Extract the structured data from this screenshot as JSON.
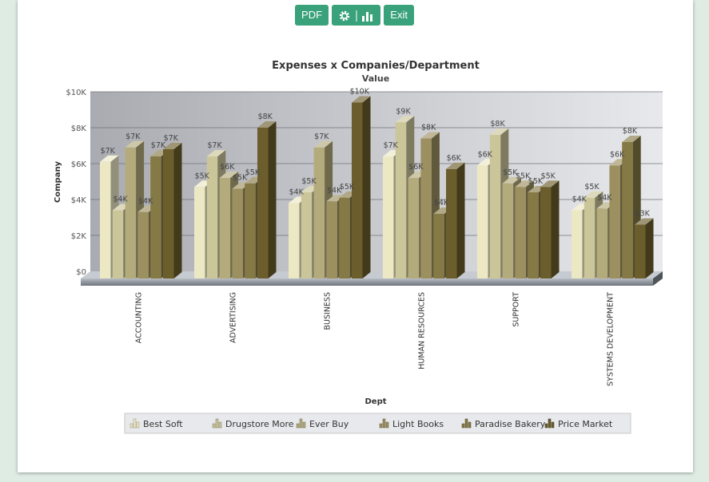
{
  "toolbar": {
    "pdf_label": "PDF",
    "settings_icon": "gear-icon",
    "chart_icon": "bar-chart-icon",
    "exit_label": "Exit",
    "accent": "#3aa27a"
  },
  "chart_data": {
    "type": "bar",
    "title": "Expenses x Companies/Department",
    "subtitle": "Value",
    "xlabel": "Dept",
    "ylabel": "Company",
    "ylim": [
      0,
      10000
    ],
    "yticks": [
      "$0",
      "$2K",
      "$4K",
      "$6K",
      "$8K",
      "$10K"
    ],
    "grid": true,
    "legend_position": "bottom",
    "categories": [
      "ACCOUNTING",
      "ADVERTISING",
      "BUSINESS",
      "HUMAN RESOURCES",
      "SUPPORT",
      "SYSTEMS DEVELOPMENT"
    ],
    "series": [
      {
        "name": "Best Soft",
        "color": "#ece8c4",
        "values": [
          6500,
          5100,
          4200,
          6800,
          6300,
          3800
        ],
        "labels": [
          "$7K",
          "$5K",
          "$4K",
          "$7K",
          "$6K",
          "$4K"
        ]
      },
      {
        "name": "Drugstore More",
        "color": "#cbc59a",
        "values": [
          3800,
          6800,
          4800,
          8700,
          8000,
          4500
        ],
        "labels": [
          "$4K",
          "$7K",
          "$5K",
          "$9K",
          "$8K",
          "$5K"
        ]
      },
      {
        "name": "Ever Buy",
        "color": "#b4ab7c",
        "values": [
          7300,
          5600,
          7300,
          5600,
          5300,
          3900
        ],
        "labels": [
          "$7K",
          "$6K",
          "$7K",
          "$6K",
          "$5K",
          "$4K"
        ]
      },
      {
        "name": "Light Books",
        "color": "#9c9060",
        "values": [
          3700,
          5000,
          4300,
          7800,
          5100,
          6300
        ],
        "labels": [
          "$4K",
          "$5K",
          "$4K",
          "$8K",
          "$5K",
          "$6K"
        ]
      },
      {
        "name": "Paradise Bakery",
        "color": "#857945",
        "values": [
          6800,
          5300,
          4500,
          3600,
          4800,
          7600
        ],
        "labels": [
          "$7K",
          "$5K",
          "$5K",
          "$4K",
          "$5K",
          "$8K"
        ]
      },
      {
        "name": "Price Market",
        "color": "#6b5e2c",
        "values": [
          7200,
          8400,
          9800,
          6100,
          5100,
          3000
        ],
        "labels": [
          "$7K",
          "$8K",
          "$10K",
          "$6K",
          "$5K",
          "$3K"
        ]
      }
    ]
  }
}
